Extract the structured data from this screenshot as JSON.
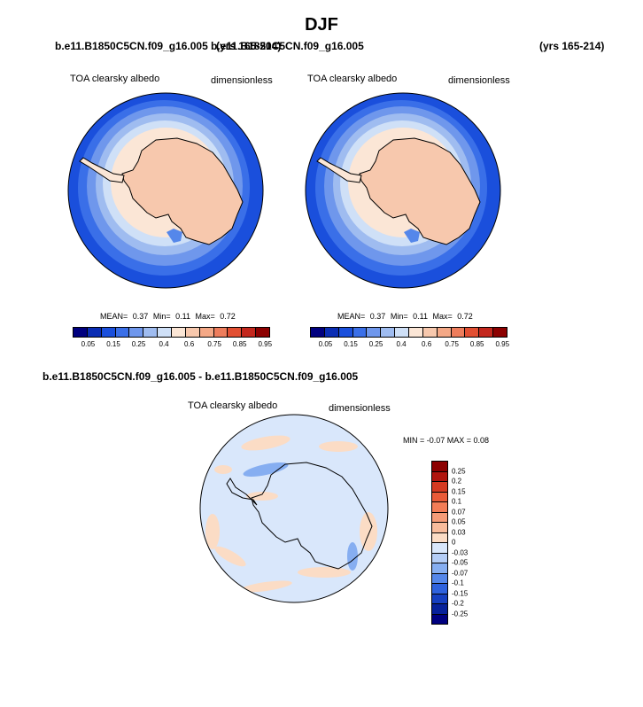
{
  "title": "DJF",
  "header": {
    "case_left": "b.e11.B1850C5CN.f09_g16.005",
    "years_left": "(yrs 165-214)",
    "case_right": "b.e11.B1850C5CN.f09_g16.005",
    "years_right": "(yrs 165-214)"
  },
  "panels": [
    {
      "variable": "TOA clearsky albedo",
      "units": "dimensionless",
      "stats": {
        "mean_label": "MEAN=",
        "mean": "0.37",
        "min_label": "Min=",
        "min": "0.11",
        "max_label": "Max=",
        "max": "0.72"
      }
    },
    {
      "variable": "TOA clearsky albedo",
      "units": "dimensionless",
      "stats": {
        "mean_label": "MEAN=",
        "mean": "0.37",
        "min_label": "Min=",
        "min": "0.11",
        "max_label": "Max=",
        "max": "0.72"
      }
    }
  ],
  "abs_colorbar": {
    "ticks": [
      "0.05",
      "0.15",
      "0.25",
      "0.4",
      "0.6",
      "0.75",
      "0.85",
      "0.95"
    ],
    "colors": [
      "#00007f",
      "#0a2db4",
      "#1a4fdc",
      "#3a6fe8",
      "#6f97ec",
      "#9fbcf0",
      "#cfe0f7",
      "#fbe6d6",
      "#f7c8ad",
      "#f4a886",
      "#ee7d5c",
      "#e24f32",
      "#c3271d",
      "#8c0000"
    ]
  },
  "diff": {
    "case_title": "b.e11.B1850C5CN.f09_g16.005 - b.e11.B1850C5CN.f09_g16.005",
    "variable": "TOA clearsky albedo",
    "units": "dimensionless",
    "minmax": "MIN = -0.07 MAX =   0.08",
    "colorbar": {
      "ticks": [
        "0.25",
        "0.2",
        "0.15",
        "0.1",
        "0.07",
        "0.05",
        "0.03",
        "0",
        "-0.03",
        "-0.05",
        "-0.07",
        "-0.1",
        "-0.15",
        "-0.2",
        "-0.25"
      ],
      "colors": [
        "#8c0000",
        "#b0150e",
        "#d53a21",
        "#e95b38",
        "#f27d57",
        "#f59c78",
        "#f8bc9c",
        "#fbdcc5",
        "#d9e7fb",
        "#b4cdf6",
        "#86aef1",
        "#5587ea",
        "#2f62dd",
        "#163fc0",
        "#07219a",
        "#000080"
      ]
    }
  }
}
